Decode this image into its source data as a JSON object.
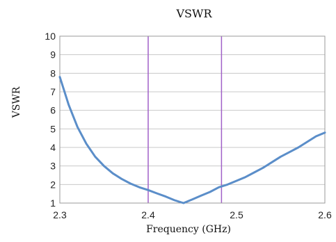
{
  "chart_data": {
    "type": "line",
    "title": "VSWR",
    "xlabel": "Frequency (GHz)",
    "ylabel": "VSWR",
    "xlim": [
      2.3,
      2.6
    ],
    "ylim": [
      1,
      10
    ],
    "xticks": [
      "2.3",
      "2.4",
      "2.5",
      "2.6"
    ],
    "yticks": [
      "1",
      "2",
      "3",
      "4",
      "5",
      "6",
      "7",
      "8",
      "9",
      "10"
    ],
    "grid": "horizontal",
    "vertical_markers": [
      2.4,
      2.483
    ],
    "colors": {
      "series": "#5b8ec9",
      "markers": "#a060c8",
      "grid": "#c8c8c8"
    },
    "series": [
      {
        "x": [
          2.3,
          2.31,
          2.32,
          2.33,
          2.34,
          2.35,
          2.36,
          2.37,
          2.38,
          2.39,
          2.4,
          2.41,
          2.42,
          2.43,
          2.44,
          2.45,
          2.46,
          2.47,
          2.48,
          2.49,
          2.5,
          2.51,
          2.52,
          2.53,
          2.54,
          2.55,
          2.56,
          2.57,
          2.58,
          2.59,
          2.6
        ],
        "y": [
          7.8,
          6.3,
          5.1,
          4.2,
          3.5,
          3.0,
          2.6,
          2.3,
          2.05,
          1.85,
          1.7,
          1.52,
          1.35,
          1.15,
          1.0,
          1.2,
          1.4,
          1.6,
          1.85,
          2.0,
          2.2,
          2.4,
          2.65,
          2.9,
          3.2,
          3.5,
          3.75,
          4.0,
          4.3,
          4.6,
          4.8
        ]
      }
    ]
  }
}
